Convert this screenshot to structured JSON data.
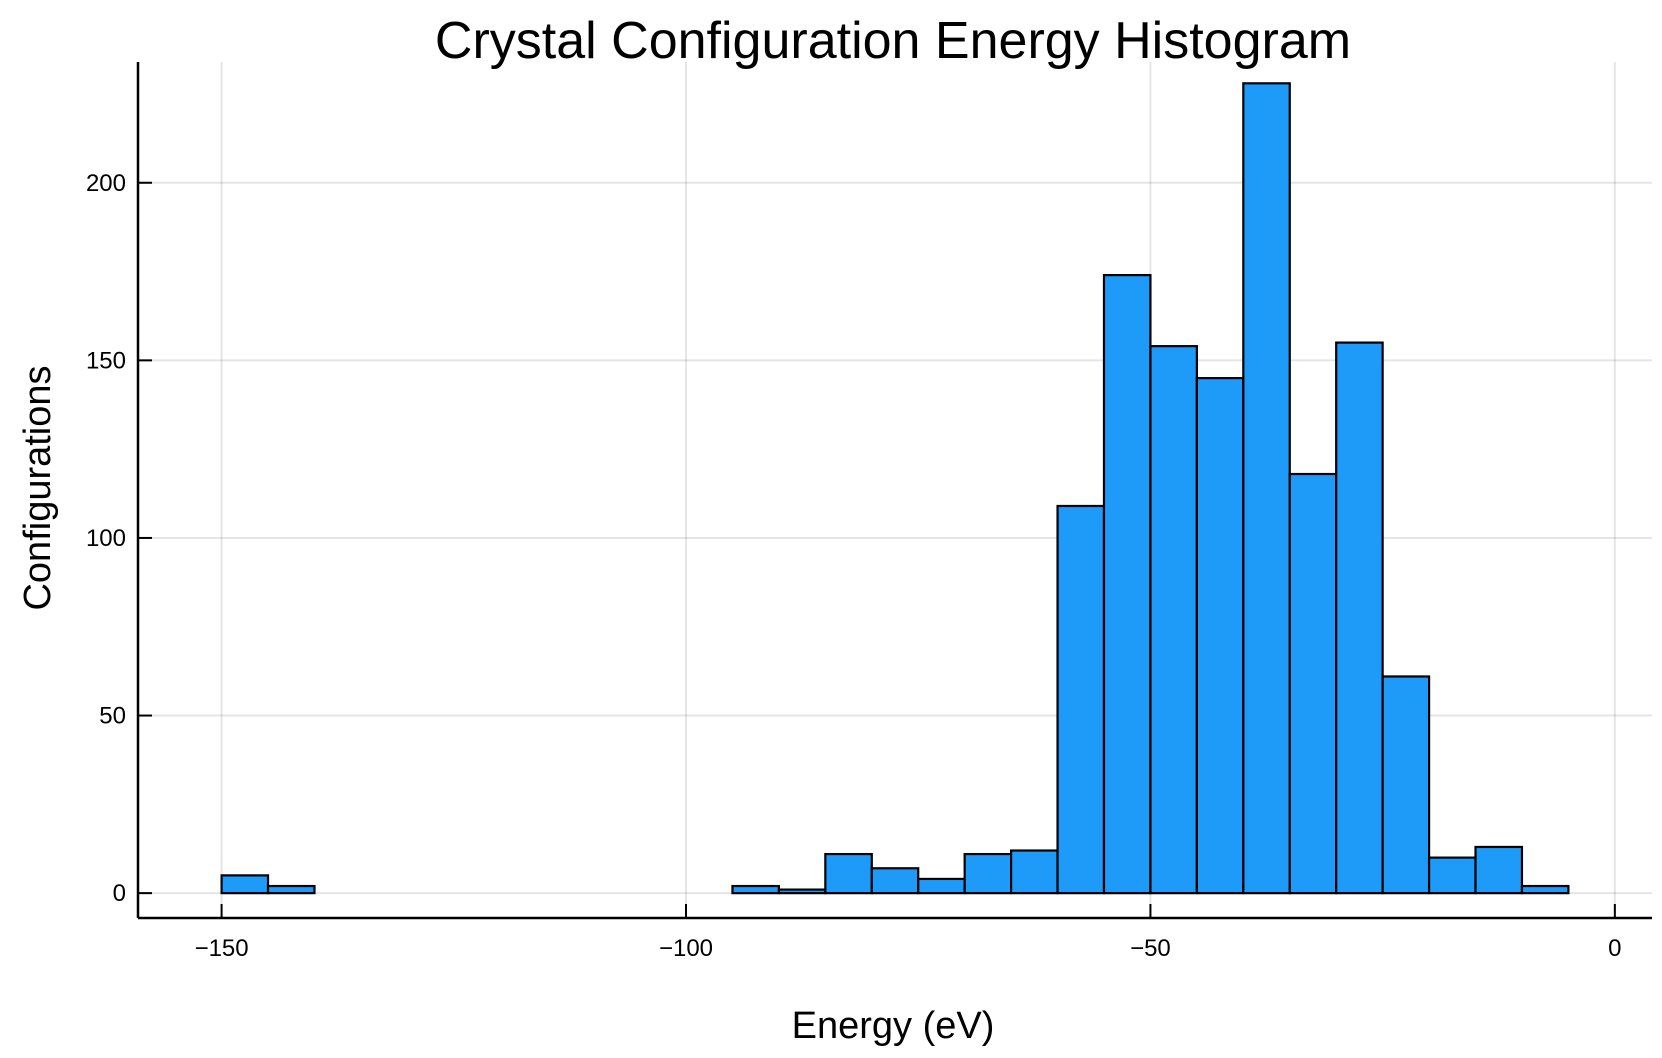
{
  "chart_data": {
    "type": "bar",
    "title": "Crystal Configuration Energy Histogram",
    "xlabel": "Energy (eV)",
    "ylabel": "Configurations",
    "xlim": [
      -159,
      4
    ],
    "ylim": [
      -7,
      234
    ],
    "x_ticks": [
      -150,
      -100,
      -50,
      0
    ],
    "x_tick_labels": [
      "−150",
      "−100",
      "−50",
      "0"
    ],
    "y_ticks": [
      0,
      50,
      100,
      150,
      200
    ],
    "y_tick_labels": [
      "0",
      "50",
      "100",
      "150",
      "200"
    ],
    "grid": true,
    "legend": "none",
    "bin_width": 5,
    "bin_edges": [
      -150,
      -145,
      -140,
      -135,
      -130,
      -125,
      -120,
      -115,
      -110,
      -105,
      -100,
      -95,
      -90,
      -85,
      -80,
      -75,
      -70,
      -65,
      -60,
      -55,
      -50,
      -45,
      -40,
      -35,
      -30,
      -25,
      -20,
      -15,
      -10,
      -5
    ],
    "counts": [
      5,
      2,
      0,
      0,
      0,
      0,
      0,
      0,
      0,
      0,
      0,
      2,
      1,
      11,
      7,
      4,
      11,
      12,
      109,
      174,
      154,
      145,
      228,
      118,
      155,
      61,
      10,
      13,
      2
    ],
    "bar_color": "#1e9bf8",
    "edge_color": "#000000"
  }
}
